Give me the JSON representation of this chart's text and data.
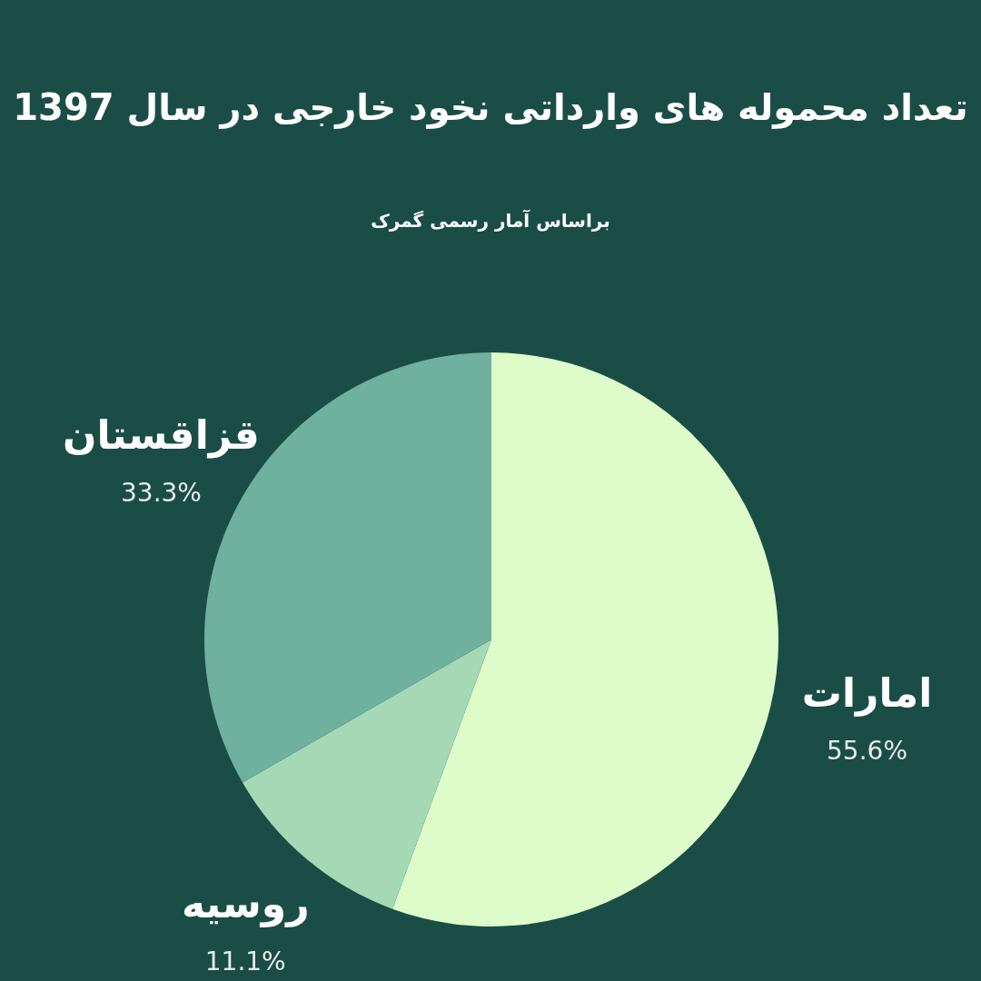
{
  "chart_data": {
    "type": "pie",
    "title": "تعداد محموله های وارداتی نخود خارجی در سال 1397",
    "subtitle": "براساس آمار رسمی گمرک",
    "categories": [
      "امارات",
      "روسیه",
      "قزاقستان"
    ],
    "values": [
      55.6,
      11.1,
      33.3
    ],
    "value_labels": [
      "55.6%",
      "11.1%",
      "33.3%"
    ],
    "colors": [
      "#ddfcc9",
      "#a5d8b5",
      "#6fb09f"
    ]
  }
}
